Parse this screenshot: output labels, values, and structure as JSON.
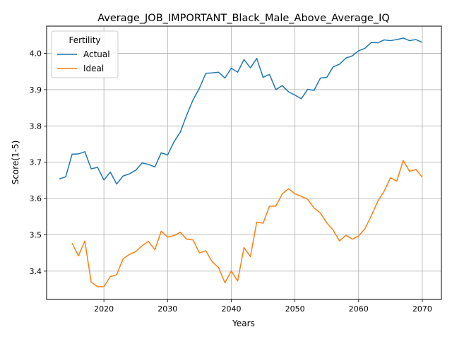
{
  "chart_data": {
    "type": "line",
    "title": "Average_JOB_IMPORTANT_Black_Male_Above_Average_IQ",
    "xlabel": "Years",
    "ylabel": "Score(1-5)",
    "xlim": [
      2011,
      2073
    ],
    "ylim": [
      3.322,
      4.075
    ],
    "xticks": [
      2020,
      2030,
      2040,
      2050,
      2060,
      2070
    ],
    "yticks": [
      3.4,
      3.5,
      3.6,
      3.7,
      3.8,
      3.9,
      4.0
    ],
    "xtick_labels": [
      "2020",
      "2030",
      "2040",
      "2050",
      "2060",
      "2070"
    ],
    "ytick_labels": [
      "3.4",
      "3.5",
      "3.6",
      "3.7",
      "3.8",
      "3.9",
      "4.0"
    ],
    "grid": true,
    "legend": {
      "title": "Fertility",
      "position": "top-left"
    },
    "series": [
      {
        "name": "Actual",
        "color": "#1f77b4",
        "x": [
          2013,
          2014,
          2015,
          2016,
          2017,
          2018,
          2019,
          2020,
          2021,
          2022,
          2023,
          2024,
          2025,
          2026,
          2027,
          2028,
          2029,
          2030,
          2031,
          2032,
          2033,
          2034,
          2035,
          2036,
          2037,
          2038,
          2039,
          2040,
          2041,
          2042,
          2043,
          2044,
          2045,
          2046,
          2047,
          2048,
          2049,
          2050,
          2051,
          2052,
          2053,
          2054,
          2055,
          2056,
          2057,
          2058,
          2059,
          2060,
          2061,
          2062,
          2063,
          2064,
          2065,
          2066,
          2067,
          2068,
          2069,
          2070
        ],
        "y": [
          3.654,
          3.66,
          3.722,
          3.723,
          3.729,
          3.682,
          3.686,
          3.651,
          3.673,
          3.64,
          3.662,
          3.668,
          3.678,
          3.698,
          3.694,
          3.687,
          3.726,
          3.72,
          3.756,
          3.783,
          3.83,
          3.872,
          3.904,
          3.945,
          3.946,
          3.948,
          3.932,
          3.959,
          3.948,
          3.983,
          3.96,
          3.986,
          3.934,
          3.942,
          3.9,
          3.911,
          3.894,
          3.885,
          3.875,
          3.901,
          3.898,
          3.932,
          3.934,
          3.963,
          3.97,
          3.987,
          3.993,
          4.007,
          4.014,
          4.03,
          4.029,
          4.037,
          4.035,
          4.038,
          4.042,
          4.035,
          4.038,
          4.03
        ]
      },
      {
        "name": "Ideal",
        "color": "#ff7f0e",
        "x": [
          2015,
          2016,
          2017,
          2018,
          2019,
          2020,
          2021,
          2022,
          2023,
          2024,
          2025,
          2026,
          2027,
          2028,
          2029,
          2030,
          2031,
          2032,
          2033,
          2034,
          2035,
          2036,
          2037,
          2038,
          2039,
          2040,
          2041,
          2042,
          2043,
          2044,
          2045,
          2046,
          2047,
          2048,
          2049,
          2050,
          2051,
          2052,
          2053,
          2054,
          2055,
          2056,
          2057,
          2058,
          2059,
          2060,
          2061,
          2062,
          2063,
          2064,
          2065,
          2066,
          2067,
          2068,
          2069,
          2070
        ],
        "y": [
          3.477,
          3.442,
          3.483,
          3.37,
          3.357,
          3.357,
          3.385,
          3.39,
          3.434,
          3.446,
          3.454,
          3.47,
          3.482,
          3.459,
          3.51,
          3.494,
          3.498,
          3.507,
          3.488,
          3.486,
          3.45,
          3.456,
          3.426,
          3.41,
          3.368,
          3.4,
          3.373,
          3.465,
          3.44,
          3.535,
          3.532,
          3.579,
          3.579,
          3.613,
          3.627,
          3.613,
          3.606,
          3.598,
          3.574,
          3.56,
          3.533,
          3.513,
          3.483,
          3.499,
          3.488,
          3.497,
          3.517,
          3.553,
          3.592,
          3.62,
          3.657,
          3.648,
          3.705,
          3.675,
          3.68,
          3.659
        ]
      }
    ]
  }
}
